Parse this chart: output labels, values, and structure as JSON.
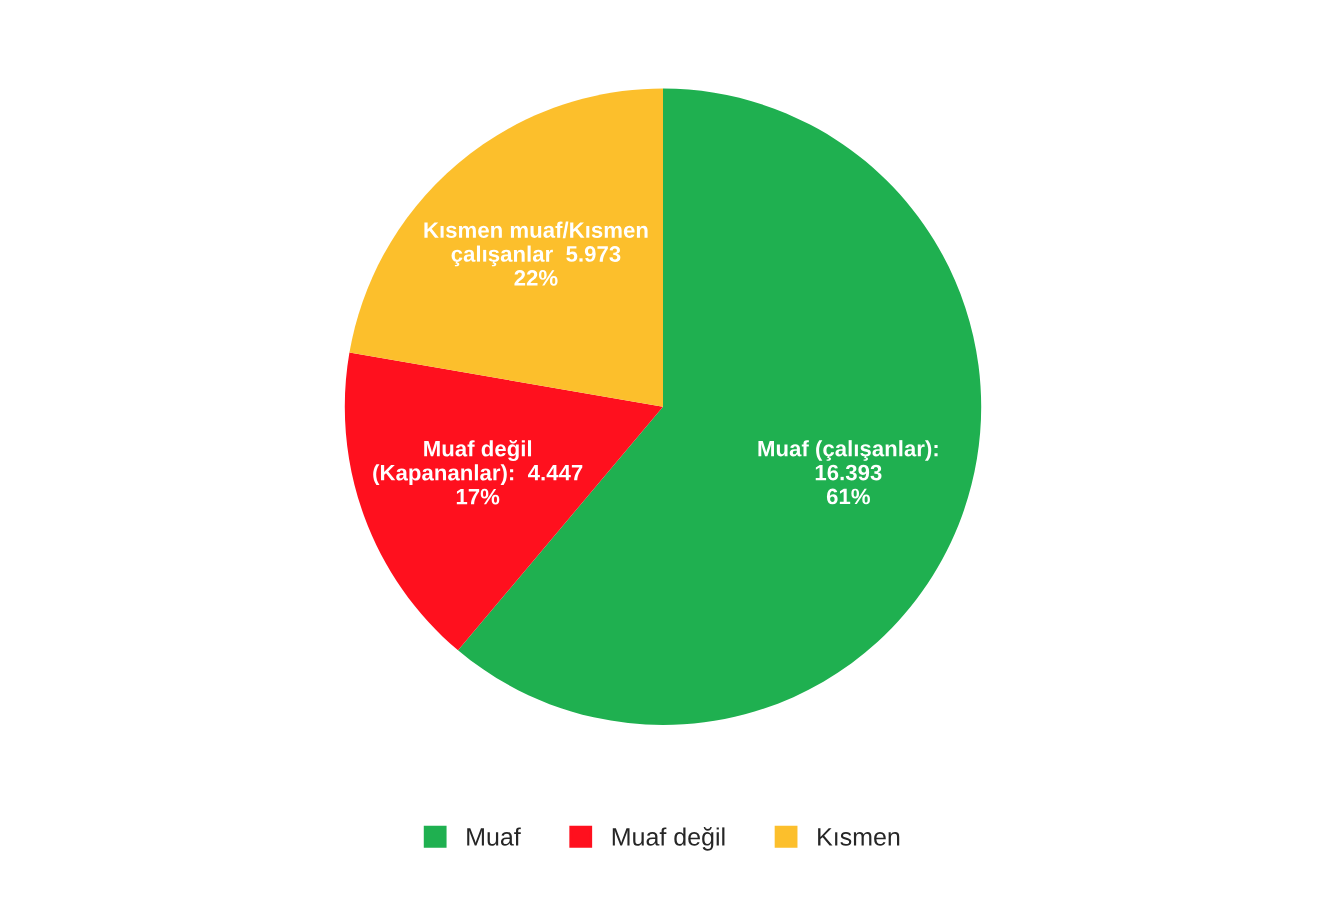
{
  "chart_data": {
    "type": "pie",
    "categories": [
      "Muaf",
      "Muaf değil",
      "Kısmen"
    ],
    "values": [
      16393,
      4447,
      5973
    ],
    "colors": [
      "#1fb050",
      "#ff101e",
      "#fcbf2c"
    ],
    "value_labels": [
      "Muaf (çalışanlar):\n16.393\n61%",
      "Muaf değil\n(Kapananlar):  4.447\n17%",
      "Kısmen muaf/Kısmen\nçalışanlar  5.973\n22%"
    ],
    "legend": "bottom"
  }
}
